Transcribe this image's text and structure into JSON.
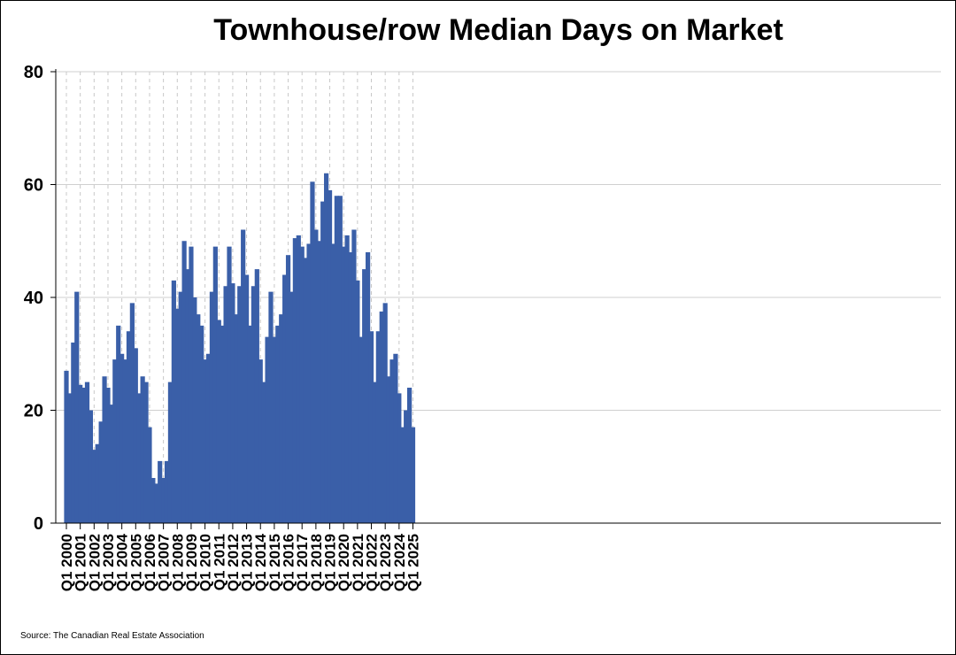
{
  "chart_data": {
    "type": "bar",
    "title": "Townhouse/row Median Days on Market",
    "xlabel": "",
    "ylabel": "",
    "ylim": [
      0,
      80
    ],
    "yticks": [
      0,
      20,
      40,
      60,
      80
    ],
    "grid": true,
    "bar_color": "#3a5fa8",
    "source": "Source: The Canadian Real Estate Association",
    "tick_labels": [
      "Q1 2000",
      "Q1 2001",
      "Q1 2002",
      "Q1 2003",
      "Q1 2004",
      "Q1 2005",
      "Q1 2006",
      "Q1 2007",
      "Q1 2008",
      "Q1 2009",
      "Q1 2010",
      "Q1 2011",
      "Q1 2012",
      "Q1 2013",
      "Q1 2014",
      "Q1 2015",
      "Q1 2016",
      "Q1 2017",
      "Q1 2018",
      "Q1 2019",
      "Q1 2020",
      "Q1 2021",
      "Q1 2022",
      "Q1 2023",
      "Q1 2024",
      "Q1 2025"
    ],
    "values": [
      27,
      23,
      32,
      41,
      24.5,
      24,
      25,
      20,
      13,
      14,
      18,
      26,
      24,
      21,
      29,
      35,
      30,
      29,
      34,
      39,
      31,
      23,
      26,
      25,
      17,
      8,
      7,
      11,
      8,
      11,
      25,
      43,
      38,
      41,
      50,
      45,
      49,
      40,
      37,
      35,
      29,
      30,
      41,
      49,
      36,
      35,
      42,
      49,
      42.5,
      37,
      42,
      52,
      44,
      35,
      42,
      45,
      29,
      25,
      33,
      41,
      33,
      35,
      37,
      44,
      47.5,
      41,
      50.5,
      51,
      49,
      47,
      49.5,
      60.5,
      52,
      50,
      57,
      62,
      59,
      49.5,
      58,
      58,
      49,
      51,
      48,
      52,
      43,
      33,
      45,
      48,
      34,
      25,
      34,
      37.5,
      39,
      26,
      29,
      30,
      23,
      17,
      20,
      24,
      17
    ]
  }
}
